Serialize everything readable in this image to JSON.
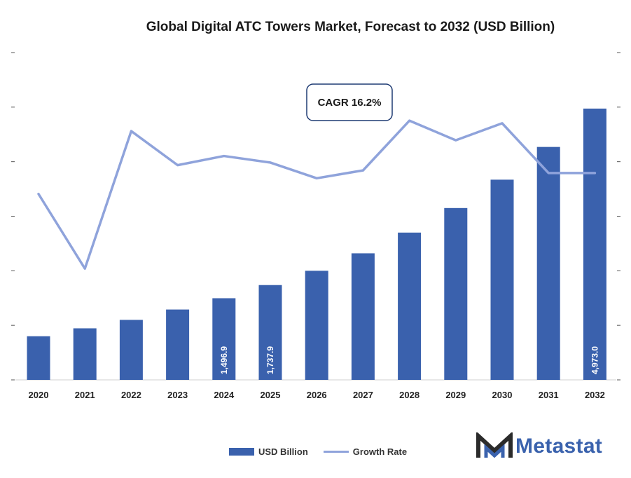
{
  "chart_data": {
    "type": "bar",
    "title": "Global Digital ATC Towers Market, Forecast to 2032 (USD Billion)",
    "categories": [
      "2020",
      "2021",
      "2022",
      "2023",
      "2024",
      "2025",
      "2026",
      "2027",
      "2028",
      "2029",
      "2030",
      "2031",
      "2032"
    ],
    "series": [
      {
        "name": "USD Billion",
        "type": "bar",
        "color": "#3a61ad",
        "values": [
          800,
          945,
          1100,
          1290,
          1496.9,
          1737.9,
          2000,
          2320,
          2700,
          3150,
          3670,
          4270,
          4973.0
        ],
        "data_labels": [
          "",
          "",
          "",
          "",
          "1,496.9",
          "1,737.9",
          "",
          "",
          "",
          "",
          "",
          "",
          "4,973.0"
        ]
      },
      {
        "name": "Growth Rate",
        "type": "line",
        "color": "#8fa3db",
        "values": [
          14.2,
          8.5,
          19.0,
          16.4,
          17.1,
          16.6,
          15.4,
          16.0,
          19.8,
          18.3,
          19.6,
          15.8,
          15.8
        ]
      }
    ],
    "ylim": [
      0,
      6000
    ],
    "y2lim": [
      0,
      25
    ],
    "grid": false,
    "legend": "bottom",
    "annotation": "CAGR 16.2%"
  },
  "brand": {
    "name": "Metastat",
    "icon": "metastat-m-logo-icon"
  }
}
